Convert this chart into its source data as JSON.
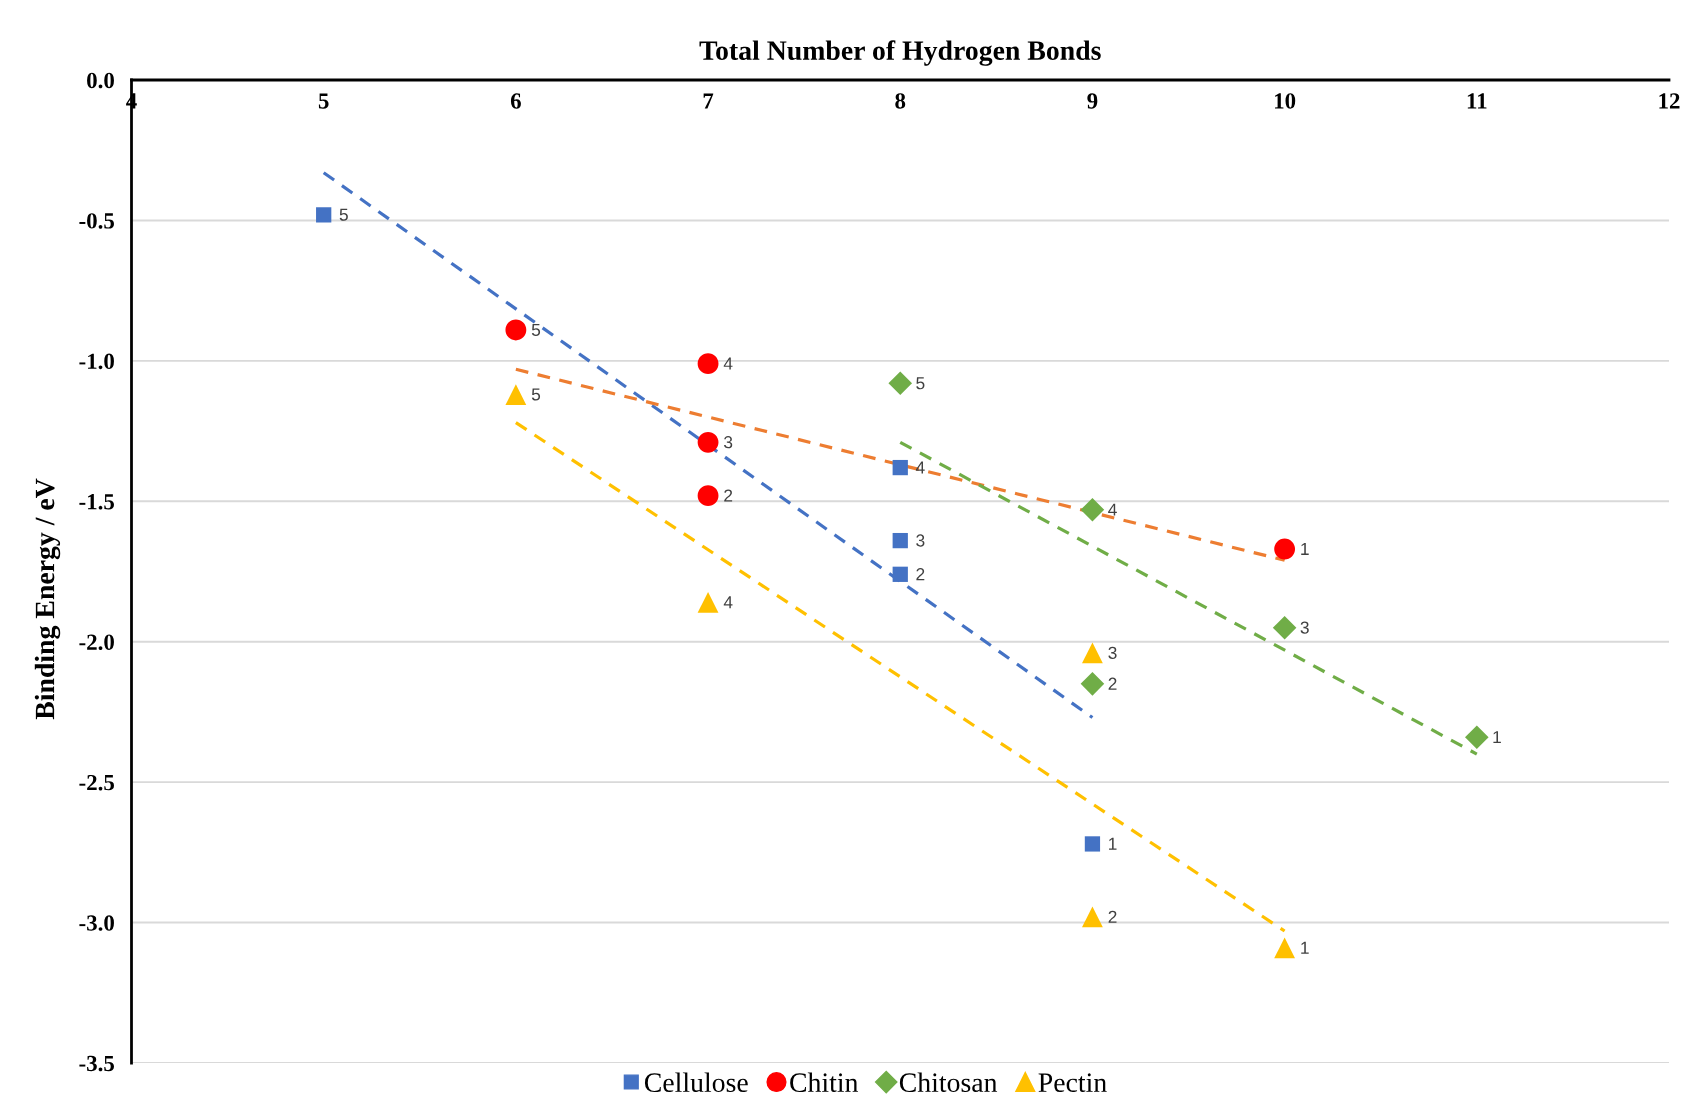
{
  "chart_data": {
    "type": "scatter",
    "xlabel": "Total Number of Hydrogen Bonds",
    "ylabel": "Binding Energy / eV",
    "xlim": [
      4,
      12
    ],
    "xticks": [
      4,
      5,
      6,
      7,
      8,
      9,
      10,
      11,
      12
    ],
    "ylim": [
      -3.5,
      0
    ],
    "yticks": [
      {
        "value": 0,
        "label": "0.0"
      },
      {
        "value": -0.5,
        "label": "-0.5"
      },
      {
        "value": -1.0,
        "label": "-1.0"
      },
      {
        "value": -1.5,
        "label": "-1.5"
      },
      {
        "value": -2.0,
        "label": "-2.0"
      },
      {
        "value": -2.5,
        "label": "-2.5"
      },
      {
        "value": -3.0,
        "label": "-3.0"
      },
      {
        "value": -3.5,
        "label": "-3.5"
      }
    ],
    "grid": "y",
    "legend": "bottom",
    "series": [
      {
        "name": "Cellulose",
        "marker": "square",
        "color": "#4472c4",
        "x": [
          5,
          8,
          8,
          8,
          9
        ],
        "values": [
          -0.48,
          -1.38,
          -1.64,
          -1.76,
          -2.72
        ]
      },
      {
        "name": "Chitin",
        "marker": "circle",
        "color": "#ff0000",
        "x": [
          6,
          7,
          7,
          7,
          10
        ],
        "values": [
          -0.89,
          -1.01,
          -1.29,
          -1.48,
          -1.67
        ]
      },
      {
        "name": "Chitosan",
        "marker": "diamond",
        "color": "#70ad47",
        "x": [
          8,
          9,
          10,
          9,
          11
        ],
        "values": [
          -1.08,
          -1.53,
          -1.95,
          -2.15,
          -2.34
        ]
      },
      {
        "name": "Pectin",
        "marker": "triangle",
        "color": "#ffc000",
        "x": [
          6,
          7,
          9,
          9,
          10
        ],
        "values": [
          -1.12,
          -1.86,
          -2.04,
          -2.98,
          -3.09
        ]
      },
      {
        "type": "line",
        "line_style": "dashed",
        "marker": "none",
        "color": "#4472c4",
        "x": [
          5,
          9
        ],
        "values": [
          -0.33,
          -2.27
        ]
      },
      {
        "type": "line",
        "line_style": "dashed",
        "marker": "none",
        "color": "#ed7d31",
        "x": [
          6,
          10
        ],
        "values": [
          -1.03,
          -1.71
        ]
      },
      {
        "type": "line",
        "line_style": "dashed",
        "marker": "none",
        "color": "#70ad47",
        "x": [
          8,
          11
        ],
        "values": [
          -1.29,
          -2.4
        ]
      },
      {
        "type": "line",
        "line_style": "dashed",
        "marker": "none",
        "color": "#ffc000",
        "x": [
          6,
          10
        ],
        "values": [
          -1.22,
          -3.03
        ]
      }
    ],
    "annotations": [
      {
        "text": "5",
        "x": 5,
        "y": -0.48
      },
      {
        "text": "4",
        "x": 8,
        "y": -1.38
      },
      {
        "text": "3",
        "x": 8,
        "y": -1.64
      },
      {
        "text": "2",
        "x": 8,
        "y": -1.76
      },
      {
        "text": "1",
        "x": 9,
        "y": -2.72
      },
      {
        "text": "5",
        "x": 6,
        "y": -0.89
      },
      {
        "text": "4",
        "x": 7,
        "y": -1.01
      },
      {
        "text": "3",
        "x": 7,
        "y": -1.29
      },
      {
        "text": "2",
        "x": 7,
        "y": -1.48
      },
      {
        "text": "1",
        "x": 10,
        "y": -1.67
      },
      {
        "text": "5",
        "x": 8,
        "y": -1.08
      },
      {
        "text": "4",
        "x": 9,
        "y": -1.53
      },
      {
        "text": "3",
        "x": 10,
        "y": -1.95
      },
      {
        "text": "2",
        "x": 9,
        "y": -2.15
      },
      {
        "text": "1",
        "x": 11,
        "y": -2.34
      },
      {
        "text": "5",
        "x": 6,
        "y": -1.12
      },
      {
        "text": "4",
        "x": 7,
        "y": -1.86
      },
      {
        "text": "3",
        "x": 9,
        "y": -2.04
      },
      {
        "text": "2",
        "x": 9,
        "y": -2.98
      },
      {
        "text": "1",
        "x": 10,
        "y": -3.09
      }
    ]
  }
}
